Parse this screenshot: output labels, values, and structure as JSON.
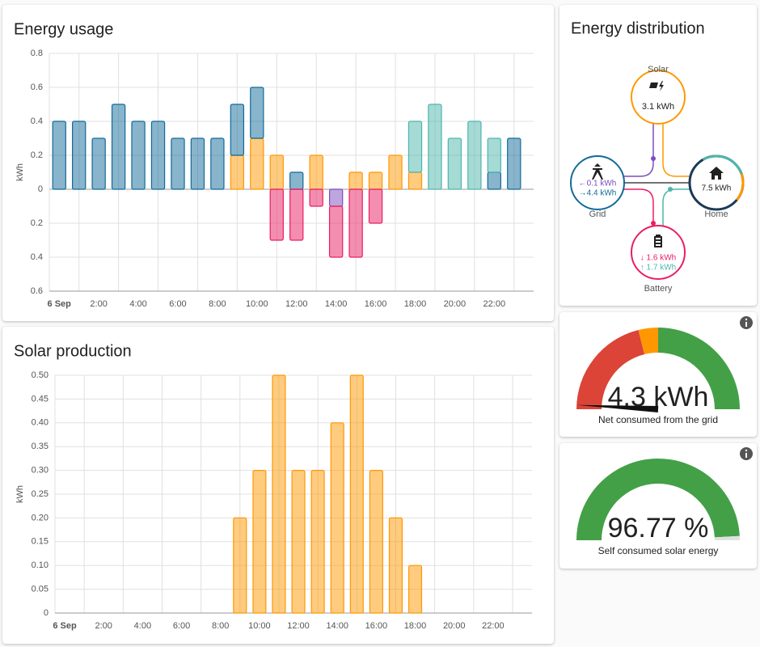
{
  "chart_data": [
    {
      "type": "bar",
      "stacked": true,
      "title": "Energy usage",
      "y_label": "kWh",
      "categories": [
        "6 Sep",
        null,
        "2:00",
        null,
        "4:00",
        null,
        "6:00",
        null,
        "8:00",
        null,
        "10:00",
        null,
        "12:00",
        null,
        "14:00",
        null,
        "16:00",
        null,
        "18:00",
        null,
        "20:00",
        null,
        "22:00",
        null
      ],
      "series": [
        {
          "color": "#ff9800",
          "values": [
            null,
            null,
            null,
            null,
            null,
            null,
            null,
            null,
            null,
            0.2,
            0.3,
            0.2,
            null,
            0.2,
            null,
            0.1,
            0.1,
            0.2,
            0.1,
            null,
            null,
            null,
            null,
            null
          ]
        },
        {
          "color": "#126a9a",
          "values": [
            0.4,
            0.4,
            0.3,
            0.5,
            0.4,
            0.4,
            0.3,
            0.3,
            0.3,
            0.3,
            0.3,
            null,
            0.1,
            null,
            null,
            null,
            null,
            null,
            null,
            null,
            null,
            null,
            0.1,
            0.3
          ]
        },
        {
          "color": "#4db6ac",
          "values": [
            null,
            null,
            null,
            null,
            null,
            null,
            null,
            null,
            null,
            null,
            null,
            null,
            null,
            null,
            null,
            null,
            null,
            null,
            0.3,
            0.5,
            0.3,
            0.4,
            0.2,
            null
          ]
        },
        {
          "color": "#7b4dbf",
          "values": [
            null,
            null,
            null,
            null,
            null,
            null,
            null,
            null,
            null,
            null,
            null,
            null,
            null,
            null,
            -0.1,
            null,
            null,
            null,
            null,
            null,
            null,
            null,
            null,
            null
          ]
        },
        {
          "color": "#e91e63",
          "values": [
            null,
            null,
            null,
            null,
            null,
            null,
            null,
            null,
            null,
            null,
            null,
            -0.3,
            -0.3,
            -0.1,
            -0.3,
            -0.4,
            -0.2,
            null,
            null,
            null,
            null,
            null,
            null,
            null
          ]
        }
      ],
      "ylim": [
        -0.6,
        0.8
      ],
      "yticks": [
        0.8,
        0.6,
        0.4,
        0.2,
        0,
        {
          "value": -0.2,
          "label": "0.2"
        },
        {
          "value": -0.4,
          "label": "0.4"
        },
        {
          "value": -0.6,
          "label": "0.6"
        }
      ],
      "grid": true
    },
    {
      "type": "bar",
      "stacked": true,
      "title": "Solar production",
      "y_label": "kWh",
      "categories": [
        "6 Sep",
        null,
        "2:00",
        null,
        "4:00",
        null,
        "6:00",
        null,
        "8:00",
        null,
        "10:00",
        null,
        "12:00",
        null,
        "14:00",
        null,
        "16:00",
        null,
        "18:00",
        null,
        "20:00",
        null,
        "22:00",
        null
      ],
      "series": [
        {
          "color": "#ff9800",
          "values": [
            null,
            null,
            null,
            null,
            null,
            null,
            null,
            null,
            null,
            0.2,
            0.3,
            0.5,
            0.3,
            0.3,
            0.4,
            0.5,
            0.3,
            0.2,
            0.1,
            null,
            null,
            null,
            null,
            null
          ]
        }
      ],
      "ylim": [
        0,
        0.5
      ],
      "yticks": [
        {
          "value": 0.5,
          "label": "0.50"
        },
        0.45,
        {
          "value": 0.4,
          "label": "0.40"
        },
        0.35,
        {
          "value": 0.3,
          "label": "0.30"
        },
        0.25,
        {
          "value": 0.2,
          "label": "0.20"
        },
        0.15,
        {
          "value": 0.1,
          "label": "0.10"
        },
        0.05,
        0
      ],
      "grid": true
    }
  ],
  "energy_distribution": {
    "title": "Energy distribution",
    "solar": {
      "label": "Solar",
      "value": "3.1 kWh"
    },
    "grid": {
      "label": "Grid",
      "values": [
        "←0.1 kWh",
        "→4.4 kWh"
      ]
    },
    "home": {
      "label": "Home",
      "value": "7.5 kWh"
    },
    "battery": {
      "label": "Battery",
      "values": [
        "↓ 1.6 kWh",
        "↑ 1.7 kWh"
      ]
    }
  },
  "gauges": [
    {
      "value": "4.3 kWh",
      "label": "Net consumed from the grid"
    },
    {
      "value": "96.77 %",
      "label": "Self consumed solar energy"
    }
  ]
}
